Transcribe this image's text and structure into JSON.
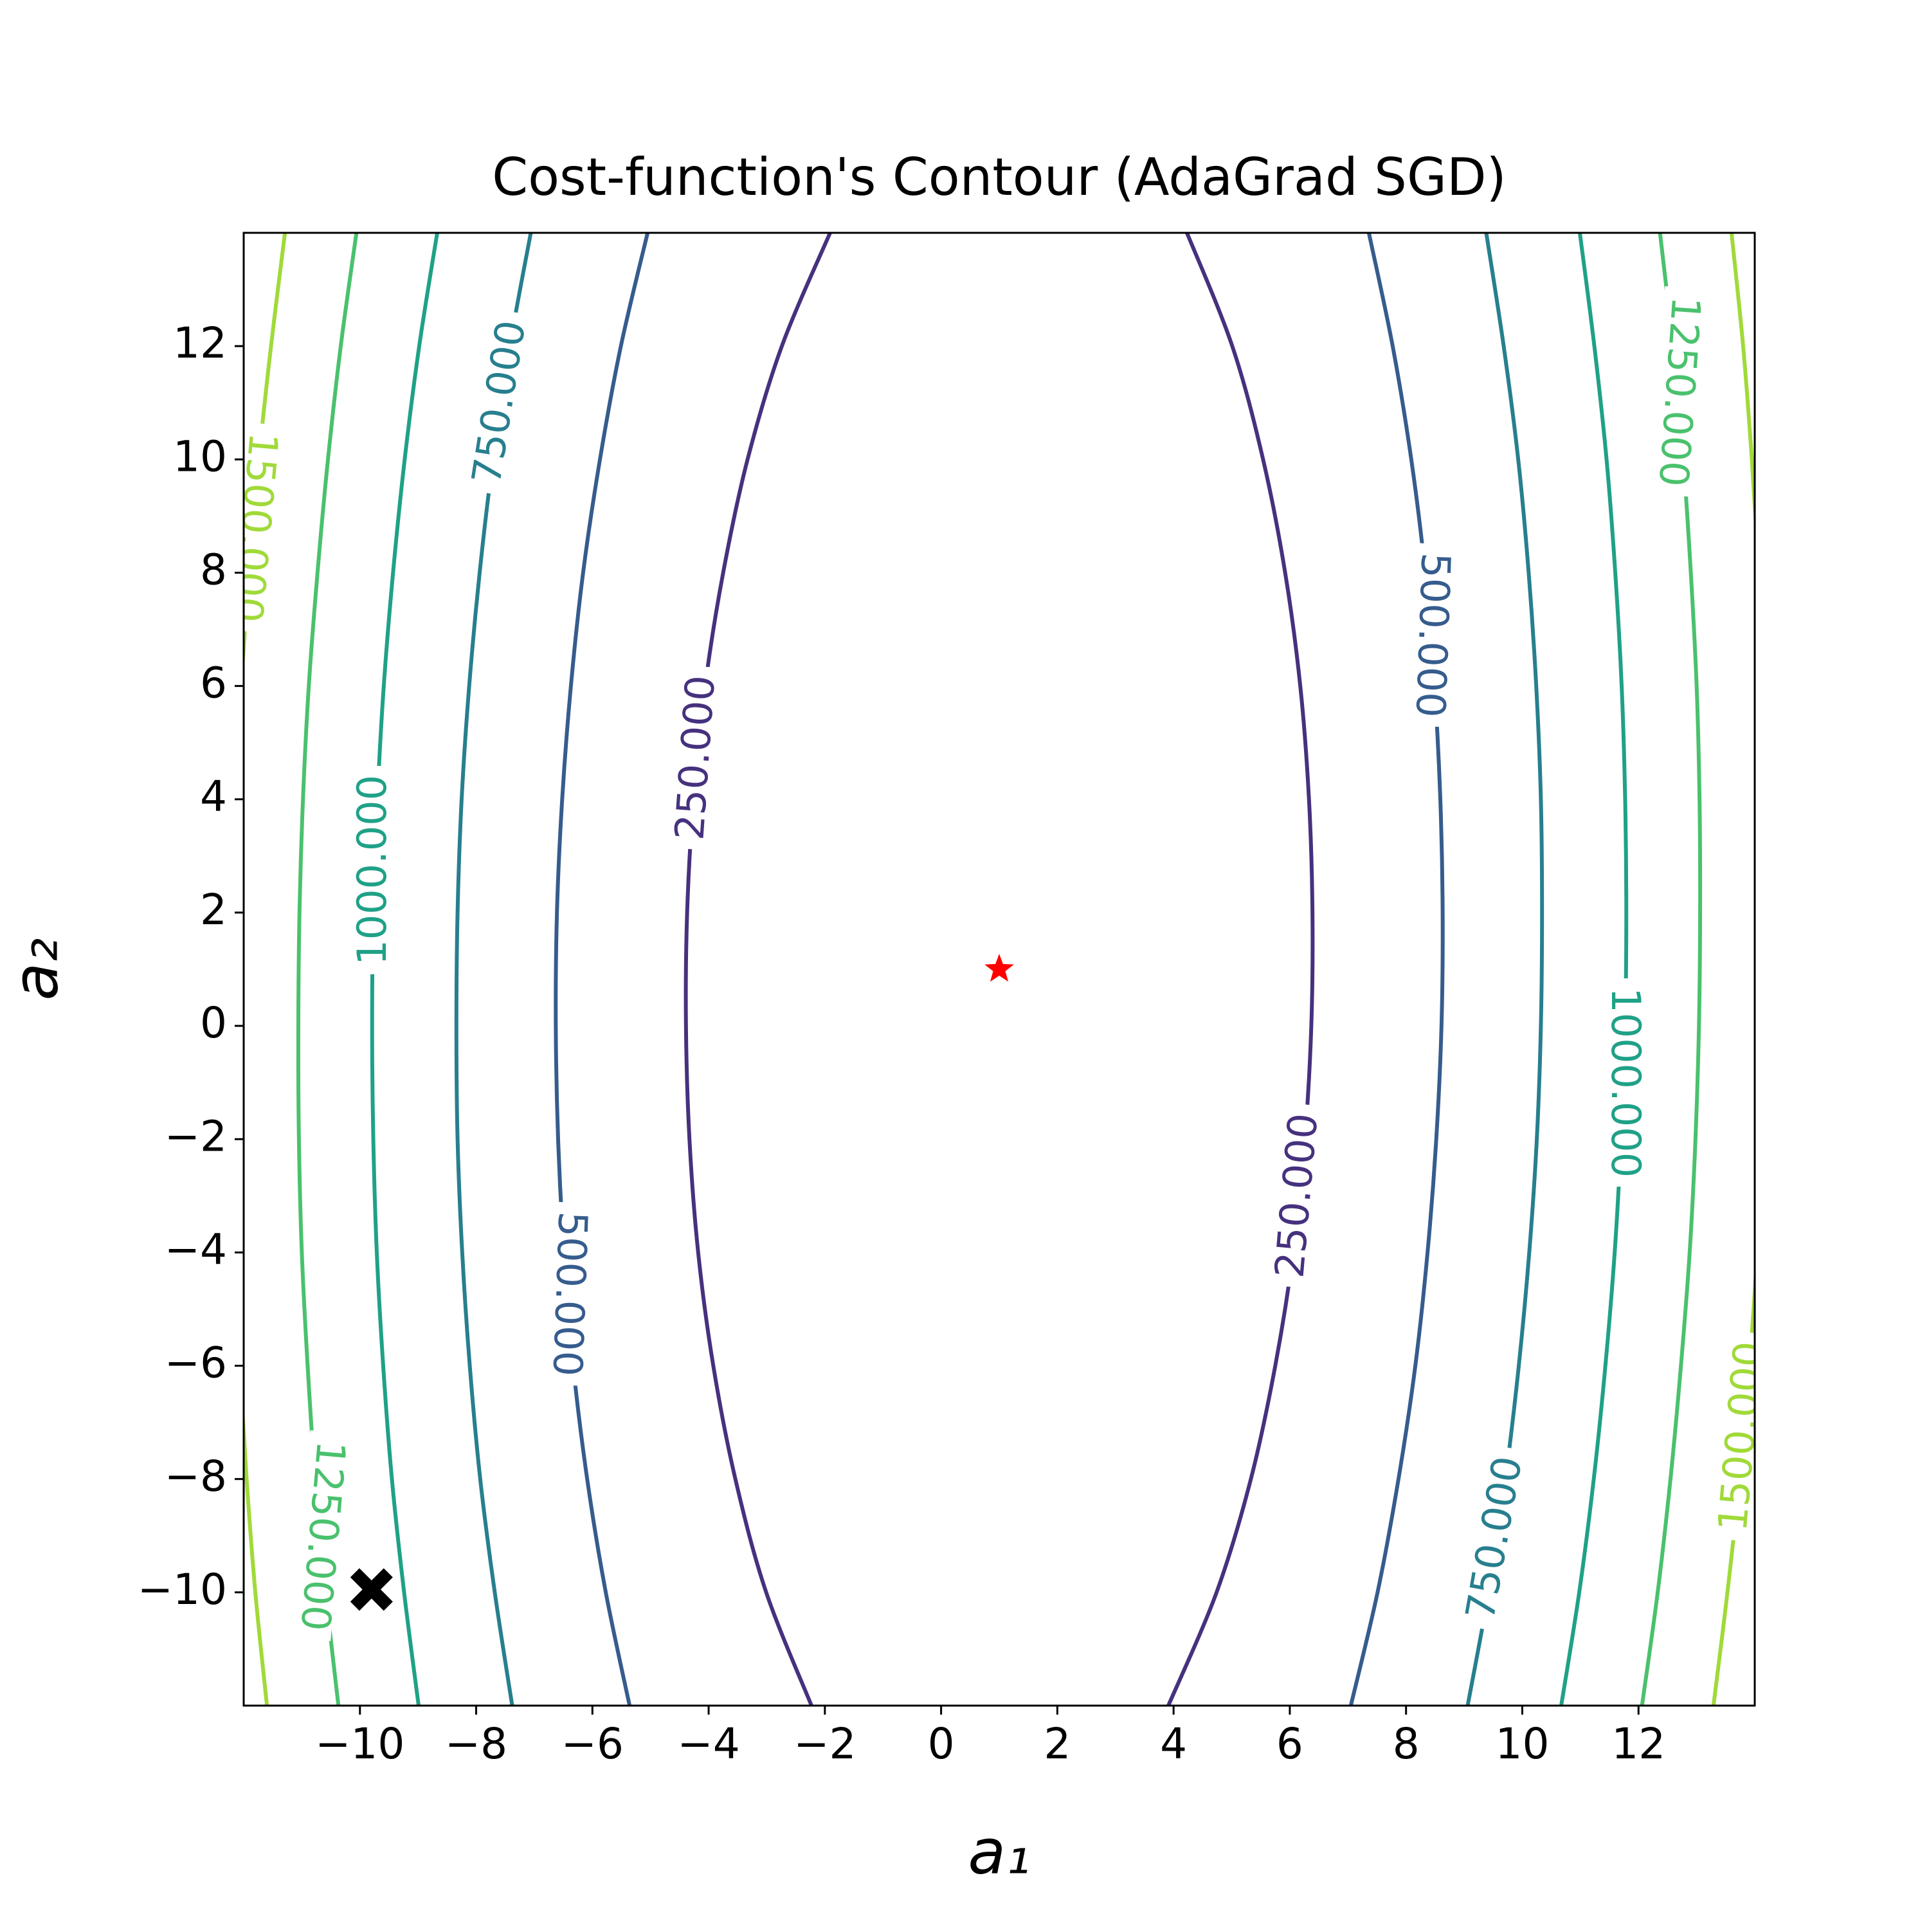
{
  "chart_data": {
    "type": "contour",
    "title": "Cost-function's Contour (AdaGrad SGD)",
    "xlabel": "a₁",
    "ylabel": "a₂",
    "xlim": [
      -12,
      14
    ],
    "ylim": [
      -12,
      14
    ],
    "xticks": [
      {
        "value": -10,
        "label": "−10"
      },
      {
        "value": -8,
        "label": "−8"
      },
      {
        "value": -6,
        "label": "−6"
      },
      {
        "value": -4,
        "label": "−4"
      },
      {
        "value": -2,
        "label": "−2"
      },
      0,
      2,
      4,
      6,
      8,
      10,
      12
    ],
    "yticks": [
      {
        "value": -10,
        "label": "−10"
      },
      {
        "value": -8,
        "label": "−8"
      },
      {
        "value": -6,
        "label": "−6"
      },
      {
        "value": -4,
        "label": "−4"
      },
      {
        "value": -2,
        "label": "−2"
      },
      0,
      2,
      4,
      6,
      8,
      10,
      12
    ],
    "grid": false,
    "y": [
      -12,
      -10,
      -8,
      -6,
      -4,
      -2,
      0,
      2,
      4,
      6,
      8,
      10,
      12,
      14
    ],
    "contours": [
      {
        "value": 250,
        "label": "250.000",
        "color": "#46317e",
        "x_left": [
          -2.23,
          -3.01,
          -3.54,
          -3.92,
          -4.18,
          -4.33,
          -4.39,
          -4.37,
          -4.26,
          -4.06,
          -3.75,
          -3.33,
          -2.74,
          -1.91
        ],
        "x_right": [
          3.91,
          4.74,
          5.33,
          5.75,
          6.06,
          6.26,
          6.37,
          6.39,
          6.33,
          6.18,
          5.92,
          5.54,
          5.01,
          4.23
        ]
      },
      {
        "value": 500,
        "label": "500.000",
        "color": "#365c8d",
        "x_left": [
          -5.36,
          -5.77,
          -6.09,
          -6.33,
          -6.49,
          -6.59,
          -6.63,
          -6.61,
          -6.52,
          -6.37,
          -6.16,
          -5.87,
          -5.51,
          -5.05
        ],
        "x_right": [
          7.05,
          7.51,
          7.87,
          8.16,
          8.37,
          8.52,
          8.61,
          8.63,
          8.59,
          8.49,
          8.33,
          8.09,
          7.77,
          7.36
        ]
      },
      {
        "value": 750,
        "label": "750.000",
        "color": "#277f8e",
        "x_left": [
          -7.38,
          -7.68,
          -7.93,
          -8.11,
          -8.24,
          -8.32,
          -8.34,
          -8.32,
          -8.25,
          -8.12,
          -7.94,
          -7.71,
          -7.42,
          -7.06
        ],
        "x_right": [
          9.06,
          9.42,
          9.71,
          9.94,
          10.12,
          10.25,
          10.32,
          10.34,
          10.32,
          10.24,
          10.11,
          9.93,
          9.68,
          9.38
        ]
      },
      {
        "value": 1000,
        "label": "1000.000",
        "color": "#1fa187",
        "x_left": [
          -8.99,
          -9.24,
          -9.45,
          -9.6,
          -9.71,
          -9.77,
          -9.79,
          -9.77,
          -9.7,
          -9.59,
          -9.43,
          -9.23,
          -8.98,
          -8.67
        ],
        "x_right": [
          10.67,
          10.98,
          11.23,
          11.43,
          11.59,
          11.7,
          11.77,
          11.79,
          11.77,
          11.71,
          11.6,
          11.45,
          11.24,
          10.99
        ]
      },
      {
        "value": 1250,
        "label": "1250.000",
        "color": "#4ac16d",
        "x_left": [
          -10.37,
          -10.59,
          -10.77,
          -10.9,
          -11.0,
          -11.05,
          -11.06,
          -11.04,
          -10.98,
          -10.88,
          -10.73,
          -10.55,
          -10.33,
          -10.06
        ],
        "x_right": [
          12.06,
          12.33,
          12.55,
          12.73,
          12.88,
          12.98,
          13.04,
          13.06,
          13.05,
          13.0,
          12.9,
          12.77,
          12.59,
          12.37
        ]
      },
      {
        "value": 1500,
        "label": "1500.000",
        "color": "#a0da39",
        "x_left": [
          -11.6,
          -11.8,
          -11.95,
          -12.07,
          -12.16,
          -12.2,
          -12.21,
          -12.19,
          -12.13,
          -12.04,
          -11.91,
          -11.74,
          -11.53,
          -11.29
        ],
        "x_right": [
          13.29,
          13.53,
          13.74,
          13.91,
          14.04,
          14.13,
          14.19,
          14.21,
          14.2,
          14.16,
          14.07,
          13.95,
          13.8,
          13.6
        ]
      }
    ],
    "points": [
      {
        "x": 1,
        "y": 1,
        "color": "#ff0000",
        "marker": "star"
      },
      {
        "x": -9.8,
        "y": -9.95,
        "color": "#000000",
        "marker": "x"
      }
    ]
  }
}
